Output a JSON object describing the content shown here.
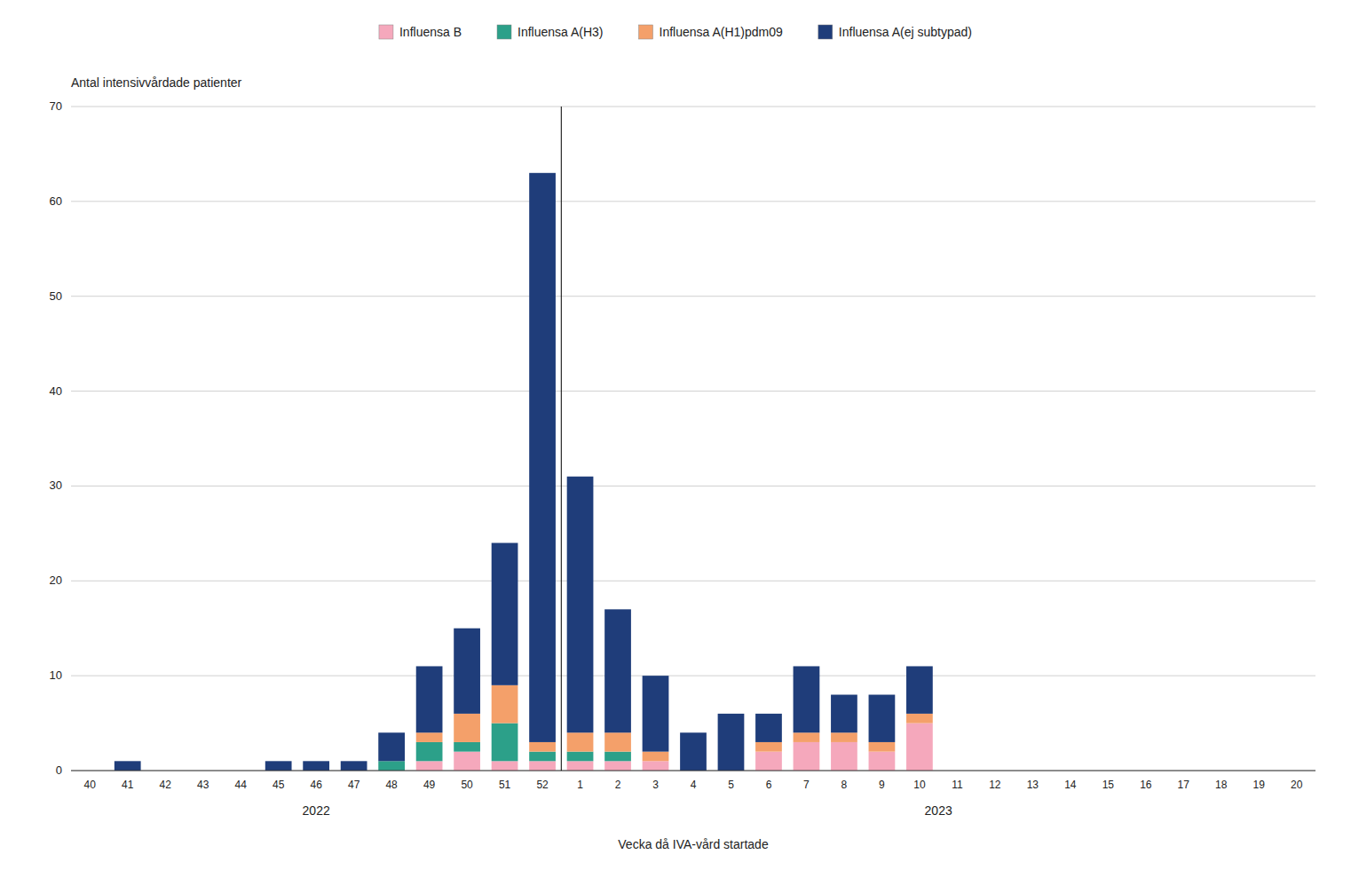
{
  "chart_data": {
    "type": "bar",
    "stacked": true,
    "grid": true,
    "legend": "top",
    "categories": [
      "40",
      "41",
      "42",
      "43",
      "44",
      "45",
      "46",
      "47",
      "48",
      "49",
      "50",
      "51",
      "52",
      "1",
      "2",
      "3",
      "4",
      "5",
      "6",
      "7",
      "8",
      "9",
      "10",
      "11",
      "12",
      "13",
      "14",
      "15",
      "16",
      "17",
      "18",
      "19",
      "20"
    ],
    "series": [
      {
        "name": "Influensa B",
        "color": "#F5A8BC",
        "values": [
          0,
          0,
          0,
          0,
          0,
          0,
          0,
          0,
          0,
          1,
          2,
          1,
          1,
          1,
          1,
          1,
          0,
          0,
          2,
          3,
          3,
          2,
          5,
          0,
          0,
          0,
          0,
          0,
          0,
          0,
          0,
          0,
          0
        ]
      },
      {
        "name": "Influensa A(H3)",
        "color": "#2CA089",
        "values": [
          0,
          0,
          0,
          0,
          0,
          0,
          0,
          0,
          1,
          2,
          1,
          4,
          1,
          1,
          1,
          0,
          0,
          0,
          0,
          0,
          0,
          0,
          0,
          0,
          0,
          0,
          0,
          0,
          0,
          0,
          0,
          0,
          0
        ]
      },
      {
        "name": "Influensa A(H1)pdm09",
        "color": "#F4A06A",
        "values": [
          0,
          0,
          0,
          0,
          0,
          0,
          0,
          0,
          0,
          1,
          3,
          4,
          1,
          2,
          2,
          1,
          0,
          0,
          1,
          1,
          1,
          1,
          1,
          0,
          0,
          0,
          0,
          0,
          0,
          0,
          0,
          0,
          0
        ]
      },
      {
        "name": "Influensa A(ej subtypad)",
        "color": "#1F3D7A",
        "values": [
          0,
          1,
          0,
          0,
          0,
          1,
          1,
          1,
          3,
          7,
          9,
          15,
          60,
          27,
          13,
          8,
          4,
          6,
          3,
          7,
          4,
          5,
          5,
          0,
          0,
          0,
          0,
          0,
          0,
          0,
          0,
          0,
          0
        ]
      }
    ],
    "y_label": "Antal intensivvårdade patienter",
    "x_label": "Vecka då IVA-vård startade",
    "annotations": [
      {
        "text": "2022",
        "from": "40",
        "to": "52"
      },
      {
        "text": "2023",
        "from": "1",
        "to": "20"
      }
    ],
    "ylim": [
      0,
      70
    ],
    "yticks": [
      0,
      10,
      20,
      30,
      40,
      50,
      60,
      70
    ]
  }
}
